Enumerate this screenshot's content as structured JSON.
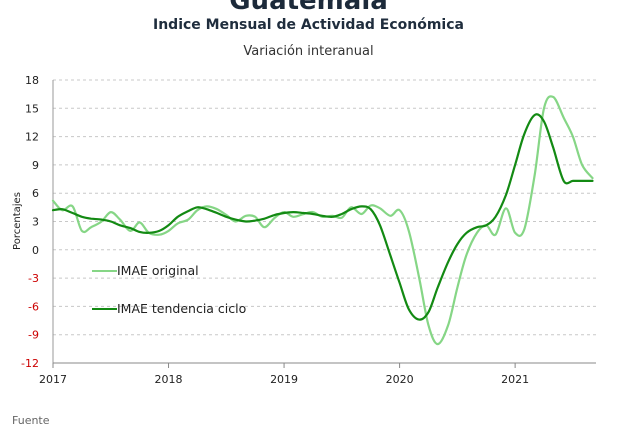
{
  "header": {
    "top_title": "Guatemala",
    "footer": "Fuente"
  },
  "chart_data": {
    "type": "line",
    "title": "Indice Mensual de  Actividad Económica",
    "subtitle": "Variación interanual",
    "ylabel": "Porcentajes",
    "xlabel": "",
    "ylim": [
      -12,
      18
    ],
    "yticks": [
      18,
      15,
      12,
      9,
      6,
      3,
      0,
      -3,
      -6,
      -9,
      -12
    ],
    "xlim": [
      2017.0,
      2021.7
    ],
    "xticks": [
      "2017",
      "2018",
      "2019",
      "2020",
      "2021"
    ],
    "grid": "horizontal-dashed",
    "legend_position": "center-left",
    "colors": {
      "original": "#86d686",
      "tendencia": "#138a13",
      "negative_ticks": "#cc0000",
      "grid": "#c8c8c8"
    },
    "series": [
      {
        "name": "IMAE original",
        "x": [
          2017.0,
          2017.08,
          2017.17,
          2017.25,
          2017.33,
          2017.42,
          2017.5,
          2017.58,
          2017.67,
          2017.75,
          2017.83,
          2017.92,
          2018.0,
          2018.08,
          2018.17,
          2018.25,
          2018.33,
          2018.42,
          2018.5,
          2018.58,
          2018.67,
          2018.75,
          2018.83,
          2018.92,
          2019.0,
          2019.08,
          2019.17,
          2019.25,
          2019.33,
          2019.42,
          2019.5,
          2019.58,
          2019.67,
          2019.75,
          2019.83,
          2019.92,
          2020.0,
          2020.08,
          2020.17,
          2020.25,
          2020.33,
          2020.42,
          2020.5,
          2020.58,
          2020.67,
          2020.75,
          2020.83,
          2020.92,
          2021.0,
          2021.08,
          2021.17,
          2021.25,
          2021.33,
          2021.42,
          2021.5,
          2021.58,
          2021.67
        ],
        "values": [
          5.2,
          4.2,
          4.6,
          2.0,
          2.4,
          3.0,
          4.0,
          3.2,
          2.0,
          2.9,
          1.8,
          1.6,
          2.0,
          2.8,
          3.2,
          4.2,
          4.6,
          4.3,
          3.7,
          3.0,
          3.6,
          3.5,
          2.4,
          3.4,
          4.0,
          3.5,
          3.8,
          4.0,
          3.5,
          3.6,
          3.4,
          4.5,
          3.8,
          4.7,
          4.4,
          3.6,
          4.2,
          2.0,
          -3.0,
          -8.0,
          -10.0,
          -8.0,
          -4.0,
          -0.5,
          1.8,
          2.6,
          1.6,
          4.4,
          1.8,
          2.2,
          8.0,
          15.0,
          16.2,
          14.0,
          12.0,
          9.0,
          7.6
        ]
      },
      {
        "name": "IMAE tendencia ciclo",
        "x": [
          2017.0,
          2017.08,
          2017.17,
          2017.25,
          2017.33,
          2017.42,
          2017.5,
          2017.58,
          2017.67,
          2017.75,
          2017.83,
          2017.92,
          2018.0,
          2018.08,
          2018.17,
          2018.25,
          2018.33,
          2018.42,
          2018.5,
          2018.58,
          2018.67,
          2018.75,
          2018.83,
          2018.92,
          2019.0,
          2019.08,
          2019.17,
          2019.25,
          2019.33,
          2019.42,
          2019.5,
          2019.58,
          2019.67,
          2019.75,
          2019.83,
          2019.92,
          2020.0,
          2020.08,
          2020.17,
          2020.25,
          2020.33,
          2020.42,
          2020.5,
          2020.58,
          2020.67,
          2020.75,
          2020.83,
          2020.92,
          2021.0,
          2021.08,
          2021.17,
          2021.25,
          2021.33,
          2021.42,
          2021.5,
          2021.58,
          2021.67
        ],
        "values": [
          4.2,
          4.3,
          3.9,
          3.5,
          3.3,
          3.2,
          3.0,
          2.6,
          2.3,
          1.9,
          1.8,
          2.0,
          2.6,
          3.5,
          4.1,
          4.5,
          4.3,
          3.9,
          3.5,
          3.2,
          3.0,
          3.1,
          3.3,
          3.7,
          3.9,
          4.0,
          3.9,
          3.8,
          3.6,
          3.5,
          3.8,
          4.3,
          4.6,
          4.3,
          2.6,
          -0.6,
          -3.5,
          -6.3,
          -7.4,
          -6.6,
          -4.0,
          -1.3,
          0.6,
          1.8,
          2.4,
          2.6,
          3.5,
          5.8,
          9.0,
          12.3,
          14.3,
          13.6,
          10.8,
          7.3,
          7.3,
          7.3,
          7.3
        ]
      }
    ]
  }
}
